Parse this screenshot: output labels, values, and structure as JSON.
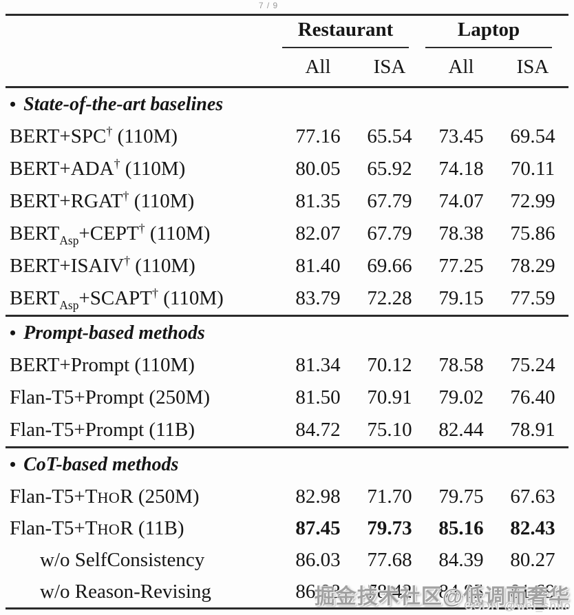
{
  "page": {
    "indicator": "7 / 9"
  },
  "colors": {
    "background": "#fdfdfd",
    "text": "#161616",
    "rule": "#2b2b2b",
    "watermark_main": "#949494",
    "watermark_sub": "#c3c3c3",
    "page_indicator": "#9a9a9a"
  },
  "table": {
    "col_groups": [
      {
        "label": "Restaurant"
      },
      {
        "label": "Laptop"
      }
    ],
    "sub_headers": [
      "All",
      "ISA",
      "All",
      "ISA"
    ],
    "sections": [
      {
        "bullet": "•",
        "header": "State-of-the-art baselines",
        "rows": [
          {
            "label": [
              {
                "t": "BERT+SPC"
              },
              {
                "t": "†",
                "s": "sup"
              },
              {
                "t": " (110M)"
              }
            ],
            "values": [
              "77.16",
              "65.54",
              "73.45",
              "69.54"
            ],
            "bold": false,
            "indent": false
          },
          {
            "label": [
              {
                "t": "BERT+ADA"
              },
              {
                "t": "†",
                "s": "sup"
              },
              {
                "t": " (110M)"
              }
            ],
            "values": [
              "80.05",
              "65.92",
              "74.18",
              "70.11"
            ],
            "bold": false,
            "indent": false
          },
          {
            "label": [
              {
                "t": "BERT+RGAT"
              },
              {
                "t": "†",
                "s": "sup"
              },
              {
                "t": " (110M)"
              }
            ],
            "values": [
              "81.35",
              "67.79",
              "74.07",
              "72.99"
            ],
            "bold": false,
            "indent": false
          },
          {
            "label": [
              {
                "t": "BERT"
              },
              {
                "t": "Asp",
                "s": "sub"
              },
              {
                "t": "+CEPT"
              },
              {
                "t": "†",
                "s": "sup"
              },
              {
                "t": " (110M)"
              }
            ],
            "values": [
              "82.07",
              "67.79",
              "78.38",
              "75.86"
            ],
            "bold": false,
            "indent": false
          },
          {
            "label": [
              {
                "t": "BERT+ISAIV"
              },
              {
                "t": "†",
                "s": "sup"
              },
              {
                "t": " (110M)"
              }
            ],
            "values": [
              "81.40",
              "69.66",
              "77.25",
              "78.29"
            ],
            "bold": false,
            "indent": false
          },
          {
            "label": [
              {
                "t": "BERT"
              },
              {
                "t": "Asp",
                "s": "sub"
              },
              {
                "t": "+SCAPT"
              },
              {
                "t": "†",
                "s": "sup"
              },
              {
                "t": " (110M)"
              }
            ],
            "values": [
              "83.79",
              "72.28",
              "79.15",
              "77.59"
            ],
            "bold": false,
            "indent": false
          }
        ]
      },
      {
        "bullet": "•",
        "header": "Prompt-based methods",
        "rows": [
          {
            "label": [
              {
                "t": "BERT+Prompt (110M)"
              }
            ],
            "values": [
              "81.34",
              "70.12",
              "78.58",
              "75.24"
            ],
            "bold": false,
            "indent": false
          },
          {
            "label": [
              {
                "t": "Flan-T5+Prompt (250M)"
              }
            ],
            "values": [
              "81.50",
              "70.91",
              "79.02",
              "76.40"
            ],
            "bold": false,
            "indent": false
          },
          {
            "label": [
              {
                "t": "Flan-T5+Prompt (11B)"
              }
            ],
            "values": [
              "84.72",
              "75.10",
              "82.44",
              "78.91"
            ],
            "bold": false,
            "indent": false
          }
        ]
      },
      {
        "bullet": "•",
        "header": "CoT-based methods",
        "rows": [
          {
            "label": [
              {
                "t": "Flan-T5+T"
              },
              {
                "t": "HO",
                "s": "sc"
              },
              {
                "t": "R (250M)"
              }
            ],
            "values": [
              "82.98",
              "71.70",
              "79.75",
              "67.63"
            ],
            "bold": false,
            "indent": false
          },
          {
            "label": [
              {
                "t": "Flan-T5+T"
              },
              {
                "t": "HO",
                "s": "sc"
              },
              {
                "t": "R (11B)"
              }
            ],
            "values": [
              "87.45",
              "79.73",
              "85.16",
              "82.43"
            ],
            "bold": true,
            "indent": false
          },
          {
            "label": [
              {
                "t": "w/o SelfConsistency"
              }
            ],
            "values": [
              "86.03",
              "77.68",
              "84.39",
              "80.27"
            ],
            "bold": false,
            "indent": true
          },
          {
            "label": [
              {
                "t": "w/o Reason-Revising"
              }
            ],
            "values": [
              "86.88",
              "78.42",
              "84.85",
              "81.69"
            ],
            "bold": false,
            "indent": true
          }
        ]
      }
    ]
  },
  "watermark": {
    "main": "掘金技术社区@低调而奢华",
    "sub": "CSDN @wei_shuo"
  }
}
